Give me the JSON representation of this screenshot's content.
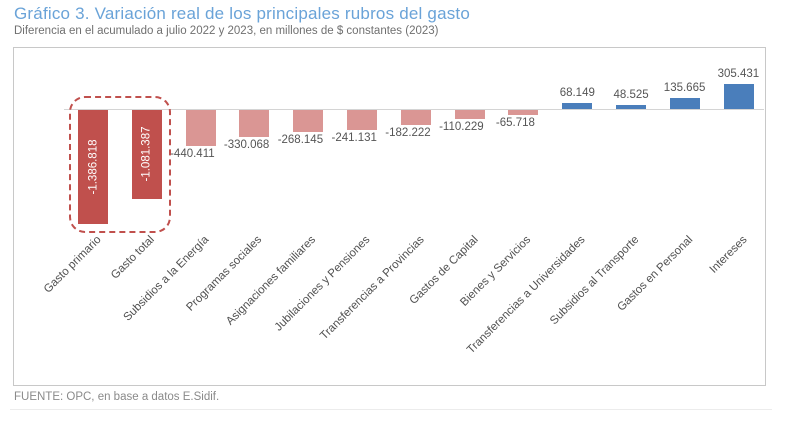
{
  "header": {
    "title": "Gráfico 3. Variación real de los principales rubros del gasto",
    "subtitle": "Diferencia en el acumulado a julio 2022 y 2023, en millones de $ constantes (2023)"
  },
  "footer": {
    "source": "FUENTE: OPC, en base a datos E.Sidif."
  },
  "colors": {
    "highlighted_negative": "#c0504d",
    "negative": "#da9694",
    "positive": "#4a7ebb",
    "title": "#6aa3d8"
  },
  "chart_data": {
    "type": "bar",
    "title": "Gráfico 3. Variación real de los principales rubros del gasto",
    "subtitle": "Diferencia en el acumulado a julio 2022 y 2023, en millones de $ constantes (2023)",
    "xlabel": "",
    "ylabel": "",
    "categories": [
      "Gasto primario",
      "Gasto total",
      "Subsidios a la Energía",
      "Programas sociales",
      "Asignaciones familiares",
      "Jubilaciones y Pensiones",
      "Transferencias a Provincias",
      "Gastos de Capital",
      "Bienes y Servicios",
      "Transferencias a Universidades",
      "Subsidios al Transporte",
      "Gastos en Personal",
      "Intereses"
    ],
    "values": [
      -1386818,
      -1081387,
      -440411,
      -330068,
      -268145,
      -241131,
      -182222,
      -110229,
      -65718,
      68149,
      48525,
      135665,
      305431
    ],
    "value_labels": [
      "-1.386.818",
      "-1.081.387",
      "-440.411",
      "-330.068",
      "-268.145",
      "-241.131",
      "-182.222",
      "-110.229",
      "-65.718",
      "68.149",
      "48.525",
      "135.665",
      "305.431"
    ],
    "highlighted": [
      "Gasto primario",
      "Gasto total"
    ],
    "grid": false,
    "legend": "none",
    "annotations": [
      "Dashed rounded box around Gasto primario and Gasto total"
    ]
  }
}
